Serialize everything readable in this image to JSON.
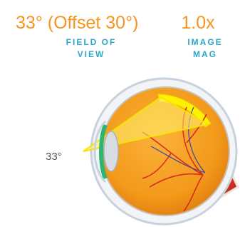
{
  "header": {
    "stats": [
      {
        "value": "33° (Offset 30°)",
        "label": [
          "FIELD OF",
          "VIEW"
        ]
      },
      {
        "value": "1.0x",
        "label": [
          "IMAGE",
          "MAG"
        ]
      }
    ]
  },
  "diagram": {
    "angle_label": "33°"
  }
}
